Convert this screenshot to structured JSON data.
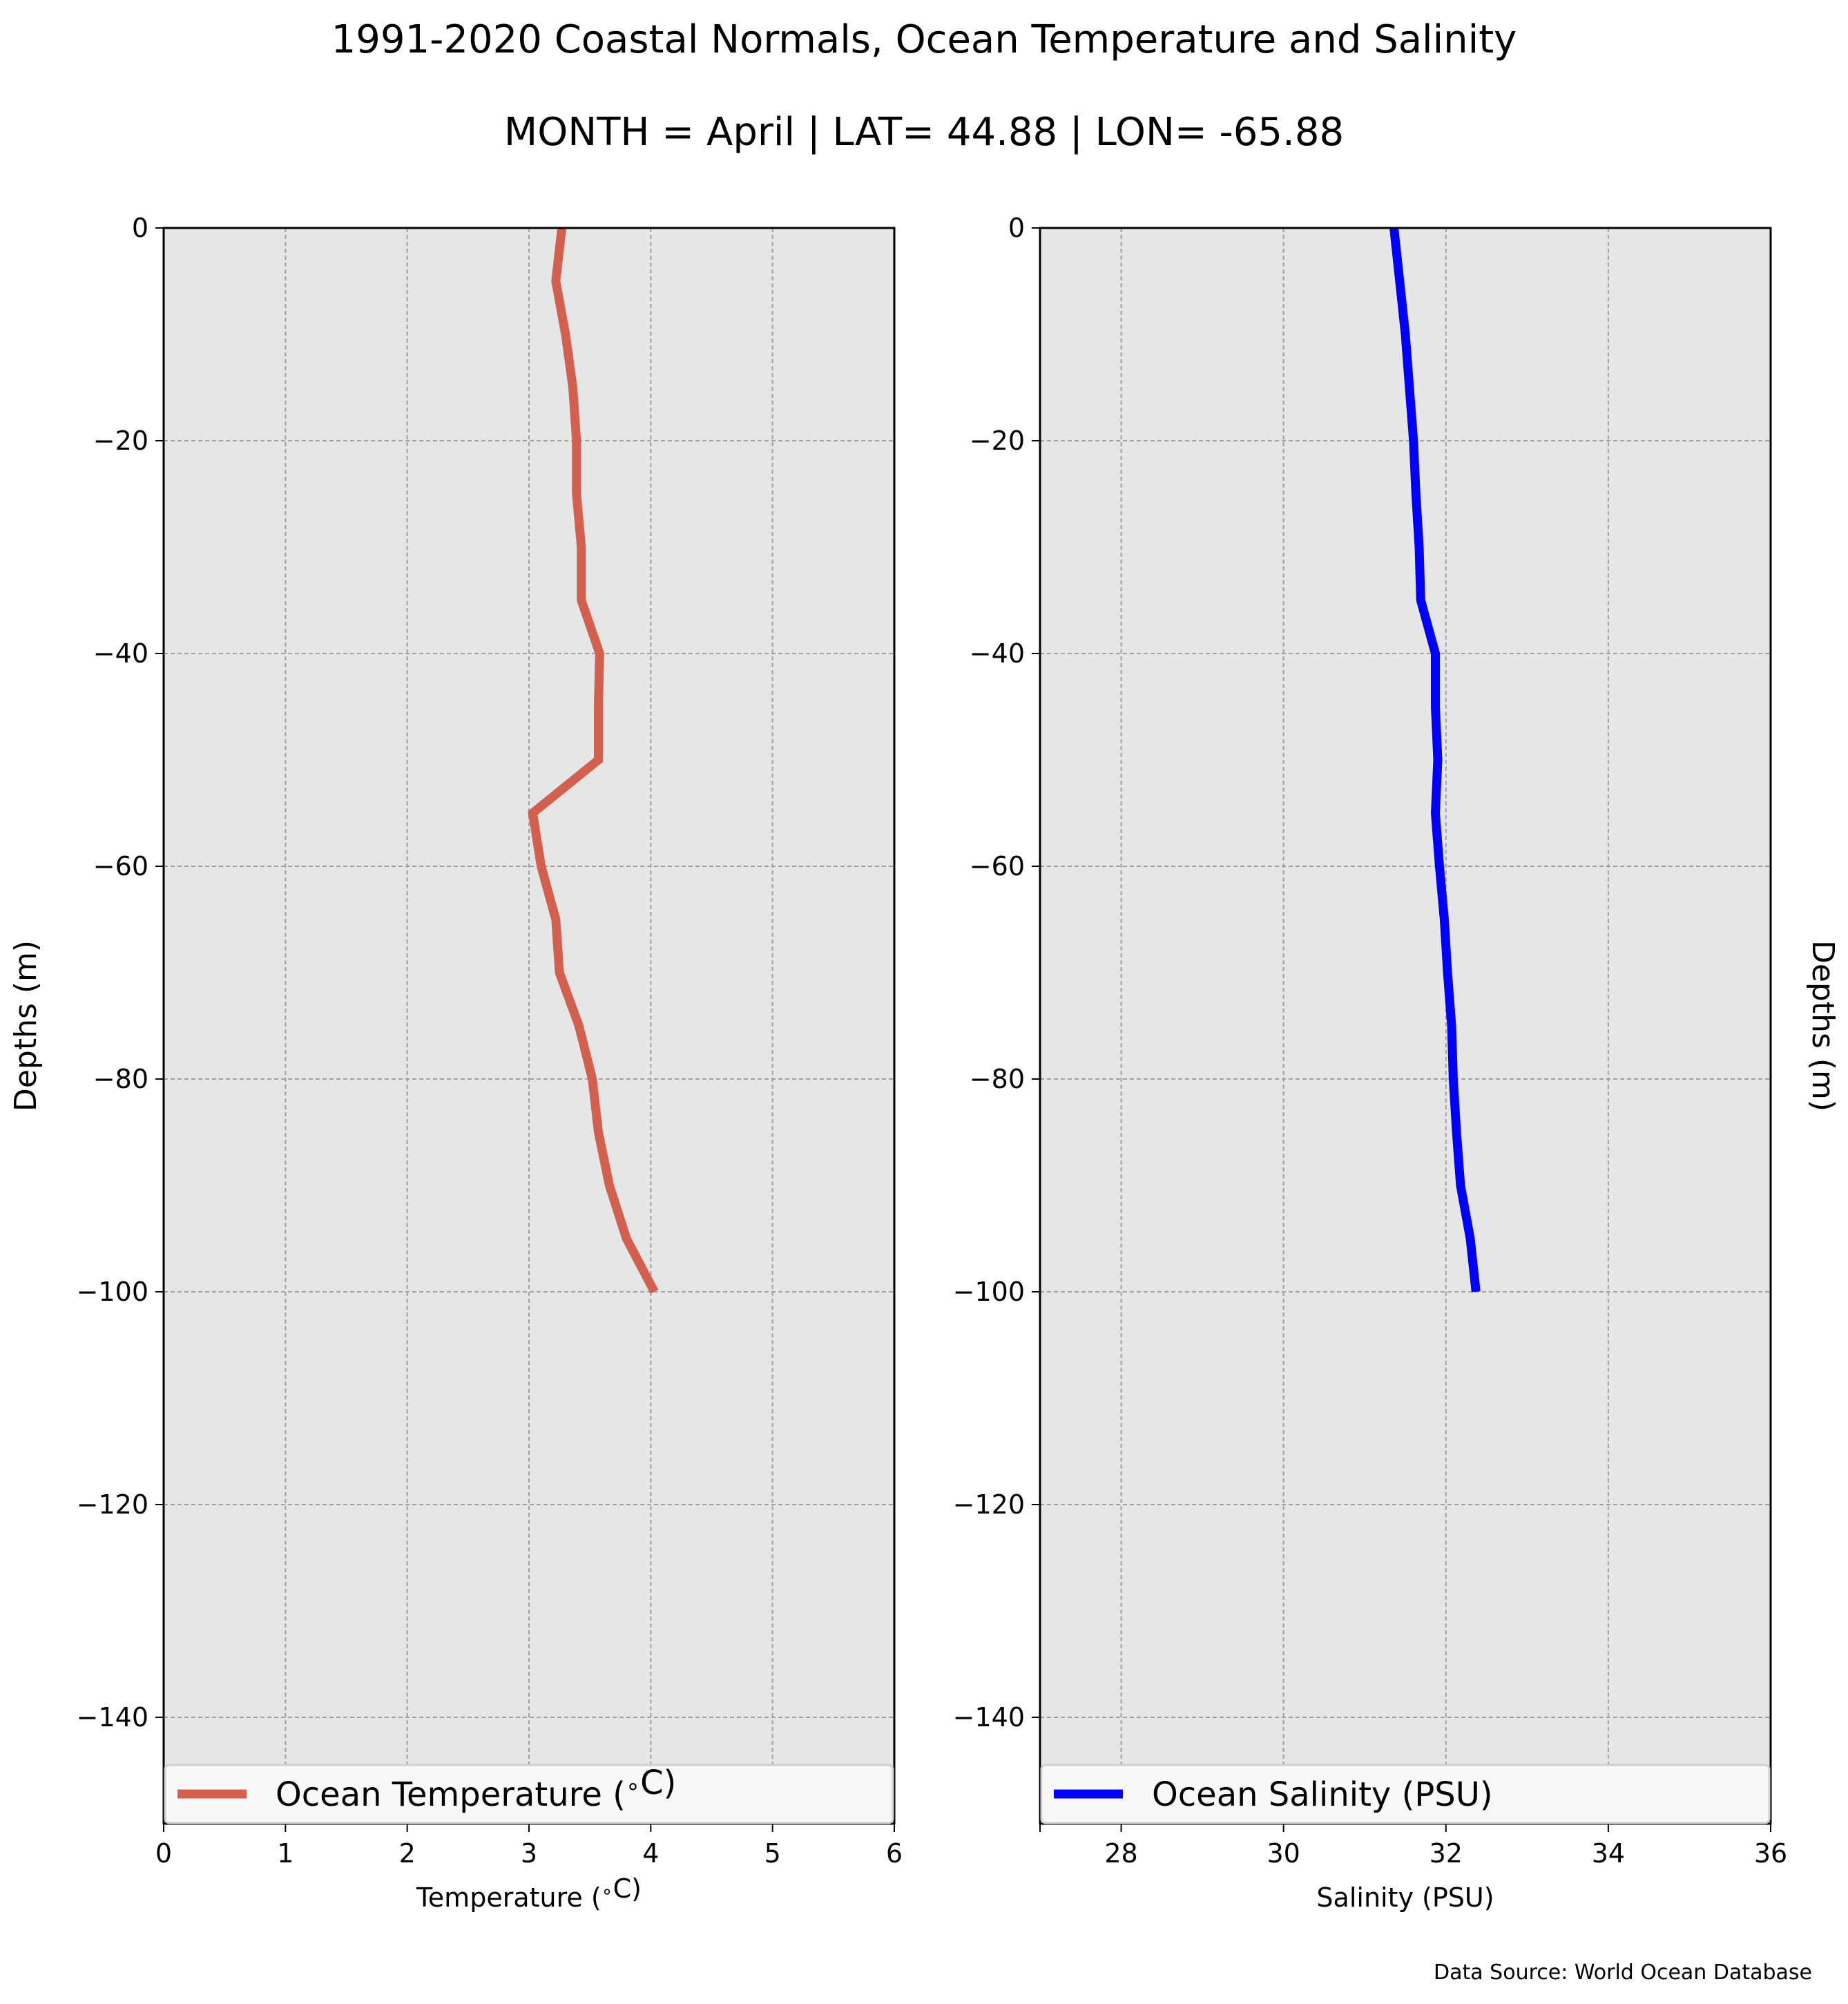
{
  "title": "1991-2020 Coastal Normals, Ocean Temperature and Salinity",
  "subtitle": "MONTH = April | LAT= 44.88 | LON= -65.88",
  "source": "Data Source: World Ocean Database",
  "colors": {
    "background": "#e6e6e6",
    "grid": "#a0a0a0",
    "temperature": "#d35f4e",
    "salinity": "#0000ff"
  },
  "chart_data": [
    {
      "type": "line",
      "xlabel": "Temperature ($^\\circ$C)",
      "ylabel": "Depths (m)",
      "xlim": [
        0,
        6
      ],
      "ylim": [
        -150,
        0
      ],
      "xticks": [
        0,
        1,
        2,
        3,
        4,
        5,
        6
      ],
      "yticks": [
        0,
        -20,
        -40,
        -60,
        -80,
        -100,
        -120,
        -140
      ],
      "grid": true,
      "legend_position": "bottom",
      "series": [
        {
          "name": "Ocean Temperature ($^\\circ$C)",
          "color": "#d35f4e",
          "points": [
            [
              3.27,
              0
            ],
            [
              3.22,
              -5
            ],
            [
              3.3,
              -10
            ],
            [
              3.36,
              -15
            ],
            [
              3.39,
              -20
            ],
            [
              3.39,
              -25
            ],
            [
              3.43,
              -30
            ],
            [
              3.43,
              -35
            ],
            [
              3.58,
              -40
            ],
            [
              3.57,
              -45
            ],
            [
              3.57,
              -50
            ],
            [
              3.03,
              -55
            ],
            [
              3.1,
              -60
            ],
            [
              3.22,
              -65
            ],
            [
              3.25,
              -70
            ],
            [
              3.41,
              -75
            ],
            [
              3.52,
              -80
            ],
            [
              3.57,
              -85
            ],
            [
              3.66,
              -90
            ],
            [
              3.8,
              -95
            ],
            [
              4.03,
              -100
            ]
          ]
        }
      ]
    },
    {
      "type": "line",
      "xlabel": "Salinity (PSU)",
      "ylabel": "Depths (m)",
      "xlim": [
        27,
        36
      ],
      "ylim": [
        -150,
        0
      ],
      "xticks": [
        28,
        30,
        32,
        34,
        36
      ],
      "yticks": [
        0,
        -20,
        -40,
        -60,
        -80,
        -100,
        -120,
        -140
      ],
      "grid": true,
      "legend_position": "bottom",
      "series": [
        {
          "name": "Ocean Salinity (PSU)",
          "color": "#0000ff",
          "points": [
            [
              31.36,
              0
            ],
            [
              31.43,
              -5
            ],
            [
              31.5,
              -10
            ],
            [
              31.55,
              -15
            ],
            [
              31.6,
              -20
            ],
            [
              31.63,
              -25
            ],
            [
              31.67,
              -30
            ],
            [
              31.69,
              -35
            ],
            [
              31.87,
              -40
            ],
            [
              31.87,
              -45
            ],
            [
              31.9,
              -50
            ],
            [
              31.87,
              -55
            ],
            [
              31.92,
              -60
            ],
            [
              31.98,
              -65
            ],
            [
              32.02,
              -70
            ],
            [
              32.07,
              -75
            ],
            [
              32.09,
              -80
            ],
            [
              32.13,
              -85
            ],
            [
              32.18,
              -90
            ],
            [
              32.3,
              -95
            ],
            [
              32.37,
              -100
            ]
          ]
        }
      ]
    }
  ]
}
